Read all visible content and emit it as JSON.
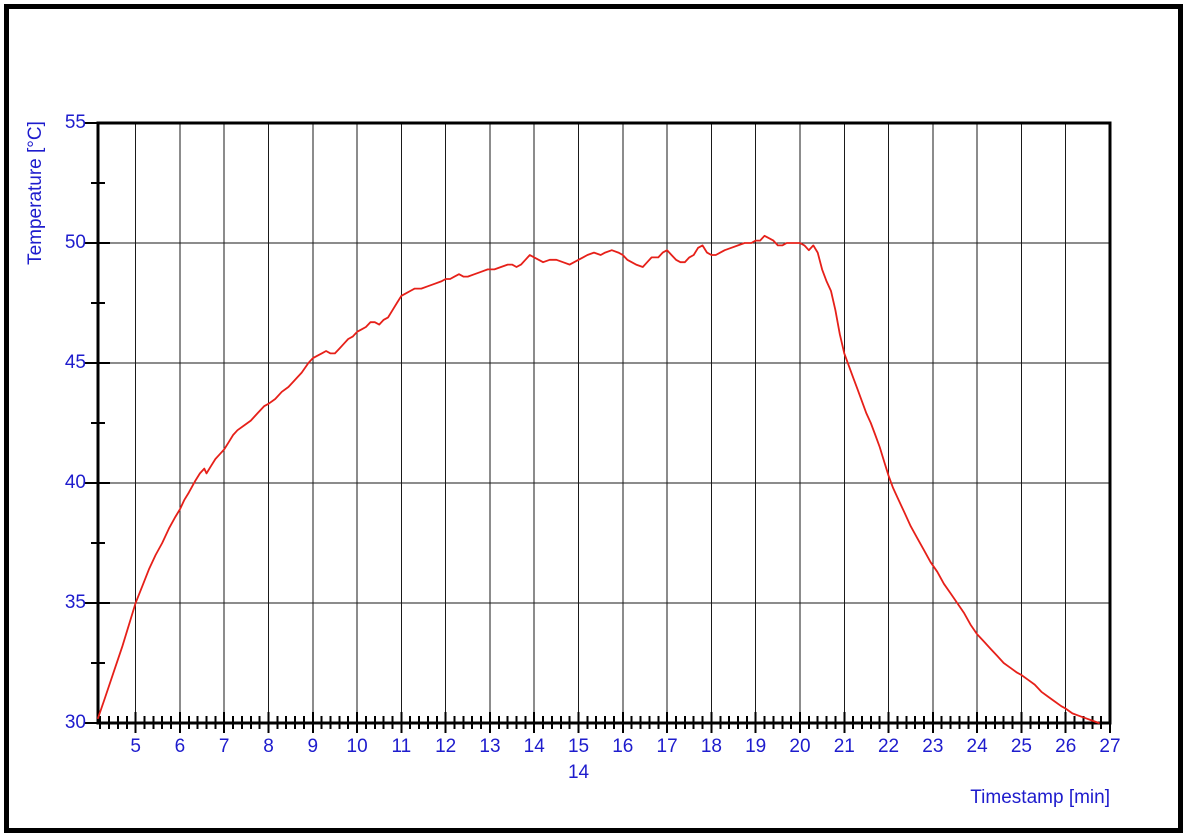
{
  "window": {
    "background": "#ffffff",
    "frame_color": "#000000"
  },
  "chart_data": {
    "type": "line",
    "title": "",
    "xlabel": "Timestamp [min]",
    "ylabel": "Temperature [°C]",
    "x_tick_labels": [
      "5",
      "6",
      "7",
      "8",
      "9",
      "10",
      "11",
      "12",
      "13",
      "14",
      "15",
      "16",
      "17",
      "18",
      "19",
      "20",
      "21",
      "22",
      "23",
      "24",
      "25",
      "26",
      "27"
    ],
    "y_tick_labels": [
      "30",
      "35",
      "40",
      "45",
      "50",
      "55"
    ],
    "y_minor_tick_values": [
      32.5,
      37.5,
      42.5,
      47.5,
      52.5
    ],
    "x_minor_tick_step": 0.2,
    "xlim": [
      4.15,
      27
    ],
    "ylim": [
      30,
      55
    ],
    "grid": true,
    "legend_position": "none",
    "annotation_label": {
      "text": "14",
      "below_x_tick": 15
    },
    "colors": {
      "line": "#e62019",
      "axis_text": "#1e1ccd",
      "grid": "#1a1a1a",
      "frame": "#000000"
    },
    "series": [
      {
        "name": "Temperature",
        "color": "#e62019",
        "x": [
          4.15,
          4.3,
          4.5,
          4.7,
          4.85,
          5.0,
          5.15,
          5.3,
          5.45,
          5.6,
          5.75,
          5.9,
          6.0,
          6.1,
          6.2,
          6.35,
          6.45,
          6.55,
          6.6,
          6.7,
          6.8,
          6.9,
          7.0,
          7.1,
          7.2,
          7.3,
          7.45,
          7.6,
          7.75,
          7.9,
          8.0,
          8.15,
          8.3,
          8.45,
          8.6,
          8.75,
          8.9,
          9.0,
          9.1,
          9.2,
          9.3,
          9.4,
          9.5,
          9.6,
          9.7,
          9.8,
          9.9,
          10.0,
          10.1,
          10.2,
          10.3,
          10.4,
          10.5,
          10.6,
          10.7,
          10.8,
          10.9,
          11.0,
          11.1,
          11.2,
          11.3,
          11.45,
          11.6,
          11.75,
          11.9,
          12.0,
          12.1,
          12.2,
          12.3,
          12.4,
          12.5,
          12.65,
          12.8,
          12.95,
          13.1,
          13.25,
          13.4,
          13.5,
          13.6,
          13.7,
          13.8,
          13.9,
          14.0,
          14.1,
          14.2,
          14.35,
          14.5,
          14.65,
          14.8,
          14.9,
          15.0,
          15.1,
          15.2,
          15.35,
          15.5,
          15.6,
          15.75,
          15.9,
          16.0,
          16.1,
          16.2,
          16.3,
          16.45,
          16.55,
          16.65,
          16.8,
          16.9,
          17.0,
          17.1,
          17.2,
          17.3,
          17.4,
          17.5,
          17.6,
          17.7,
          17.8,
          17.9,
          18.0,
          18.1,
          18.2,
          18.3,
          18.45,
          18.6,
          18.75,
          18.9,
          19.0,
          19.1,
          19.2,
          19.3,
          19.4,
          19.5,
          19.6,
          19.7,
          19.8,
          19.9,
          20.0,
          20.1,
          20.2,
          20.3,
          20.4,
          20.5,
          20.6,
          20.7,
          20.8,
          20.9,
          21.0,
          21.1,
          21.2,
          21.3,
          21.4,
          21.5,
          21.6,
          21.7,
          21.8,
          21.9,
          22.0,
          22.1,
          22.2,
          22.35,
          22.5,
          22.65,
          22.8,
          22.95,
          23.1,
          23.25,
          23.4,
          23.55,
          23.7,
          23.85,
          24.0,
          24.15,
          24.3,
          24.45,
          24.6,
          24.75,
          24.9,
          25.0,
          25.15,
          25.3,
          25.45,
          25.6,
          25.75,
          25.9,
          26.0,
          26.15,
          26.3,
          26.45,
          26.6,
          26.75
        ],
        "y": [
          30.2,
          31.0,
          32.1,
          33.2,
          34.1,
          35.0,
          35.7,
          36.4,
          37.0,
          37.5,
          38.1,
          38.6,
          38.9,
          39.3,
          39.6,
          40.1,
          40.4,
          40.6,
          40.4,
          40.7,
          41.0,
          41.2,
          41.4,
          41.7,
          42.0,
          42.2,
          42.4,
          42.6,
          42.9,
          43.2,
          43.3,
          43.5,
          43.8,
          44.0,
          44.3,
          44.6,
          45.0,
          45.2,
          45.3,
          45.4,
          45.5,
          45.4,
          45.4,
          45.6,
          45.8,
          46.0,
          46.1,
          46.3,
          46.4,
          46.5,
          46.7,
          46.7,
          46.6,
          46.8,
          46.9,
          47.2,
          47.5,
          47.8,
          47.9,
          48.0,
          48.1,
          48.1,
          48.2,
          48.3,
          48.4,
          48.5,
          48.5,
          48.6,
          48.7,
          48.6,
          48.6,
          48.7,
          48.8,
          48.9,
          48.9,
          49.0,
          49.1,
          49.1,
          49.0,
          49.1,
          49.3,
          49.5,
          49.4,
          49.3,
          49.2,
          49.3,
          49.3,
          49.2,
          49.1,
          49.2,
          49.3,
          49.4,
          49.5,
          49.6,
          49.5,
          49.6,
          49.7,
          49.6,
          49.5,
          49.3,
          49.2,
          49.1,
          49.0,
          49.2,
          49.4,
          49.4,
          49.6,
          49.7,
          49.5,
          49.3,
          49.2,
          49.2,
          49.4,
          49.5,
          49.8,
          49.9,
          49.6,
          49.5,
          49.5,
          49.6,
          49.7,
          49.8,
          49.9,
          50.0,
          50.0,
          50.1,
          50.1,
          50.3,
          50.2,
          50.1,
          49.9,
          49.9,
          50.0,
          50.0,
          50.0,
          50.0,
          49.9,
          49.7,
          49.9,
          49.6,
          48.9,
          48.4,
          48.0,
          47.2,
          46.2,
          45.4,
          44.9,
          44.4,
          43.9,
          43.4,
          42.9,
          42.5,
          42.0,
          41.5,
          40.9,
          40.3,
          39.8,
          39.4,
          38.8,
          38.2,
          37.7,
          37.2,
          36.7,
          36.3,
          35.8,
          35.4,
          35.0,
          34.6,
          34.1,
          33.7,
          33.4,
          33.1,
          32.8,
          32.5,
          32.3,
          32.1,
          32.0,
          31.8,
          31.6,
          31.3,
          31.1,
          30.9,
          30.7,
          30.6,
          30.4,
          30.3,
          30.2,
          30.1,
          30.0
        ]
      }
    ]
  }
}
